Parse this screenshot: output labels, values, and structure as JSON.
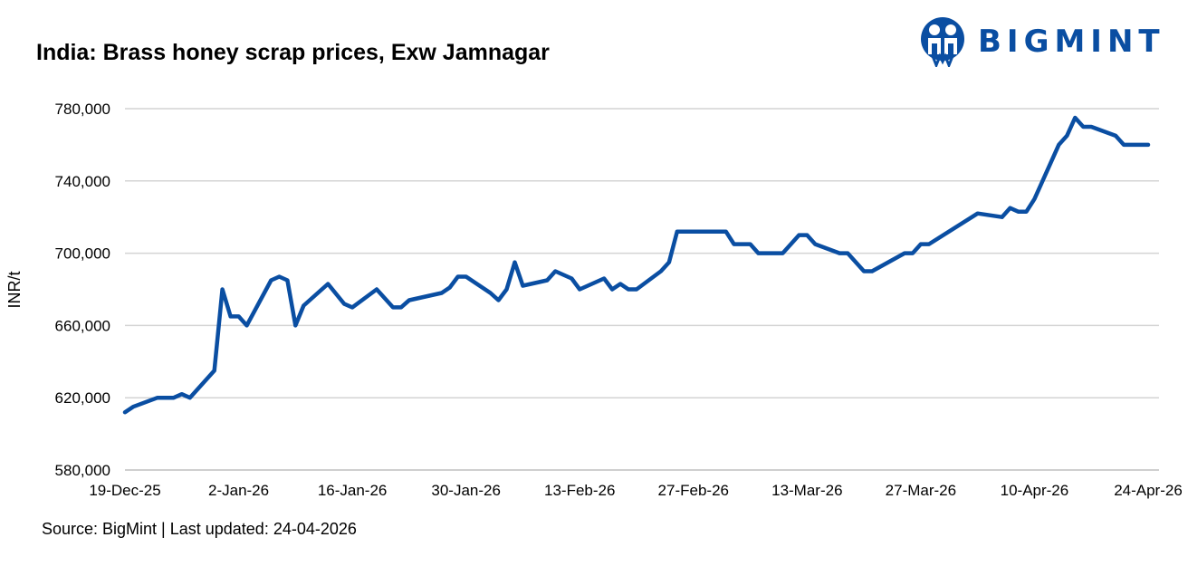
{
  "chart_data": {
    "type": "line",
    "title": "India: Brass honey scrap prices, Exw Jamnagar",
    "ylabel": "INR/t",
    "xlabel": "",
    "ylim": [
      580000,
      780000
    ],
    "yticks": [
      580000,
      620000,
      660000,
      700000,
      740000,
      780000
    ],
    "ytick_labels": [
      "580,000",
      "620,000",
      "660,000",
      "700,000",
      "740,000",
      "780,000"
    ],
    "xlim": [
      "2025-12-19",
      "2026-04-24"
    ],
    "xticks": [
      "2025-12-19",
      "2026-01-02",
      "2026-01-16",
      "2026-01-30",
      "2026-02-13",
      "2026-02-27",
      "2026-03-13",
      "2026-03-27",
      "2026-04-10",
      "2026-04-24"
    ],
    "xtick_labels": [
      "19-Dec-25",
      "2-Jan-26",
      "16-Jan-26",
      "30-Jan-26",
      "13-Feb-26",
      "27-Feb-26",
      "13-Mar-26",
      "27-Mar-26",
      "10-Apr-26",
      "24-Apr-26"
    ],
    "grid": "horizontal",
    "line_color": "#0a4ea2",
    "series": [
      {
        "x": [
          "2025-12-19",
          "2025-12-20",
          "2025-12-23",
          "2025-12-25",
          "2025-12-26",
          "2025-12-27",
          "2025-12-30",
          "2025-12-31",
          "2026-01-01",
          "2026-01-02",
          "2026-01-03",
          "2026-01-06",
          "2026-01-07",
          "2026-01-08",
          "2026-01-09",
          "2026-01-10",
          "2026-01-13",
          "2026-01-15",
          "2026-01-16",
          "2026-01-19",
          "2026-01-21",
          "2026-01-22",
          "2026-01-23",
          "2026-01-27",
          "2026-01-28",
          "2026-01-29",
          "2026-01-30",
          "2026-02-02",
          "2026-02-03",
          "2026-02-04",
          "2026-02-05",
          "2026-02-06",
          "2026-02-09",
          "2026-02-10",
          "2026-02-12",
          "2026-02-13",
          "2026-02-16",
          "2026-02-17",
          "2026-02-18",
          "2026-02-19",
          "2026-02-20",
          "2026-02-23",
          "2026-02-24",
          "2026-02-25",
          "2026-03-03",
          "2026-03-04",
          "2026-03-06",
          "2026-03-07",
          "2026-03-10",
          "2026-03-12",
          "2026-03-13",
          "2026-03-14",
          "2026-03-17",
          "2026-03-18",
          "2026-03-20",
          "2026-03-21",
          "2026-03-25",
          "2026-03-26",
          "2026-03-27",
          "2026-03-28",
          "2026-04-03",
          "2026-04-06",
          "2026-04-07",
          "2026-04-08",
          "2026-04-09",
          "2026-04-10",
          "2026-04-13",
          "2026-04-14",
          "2026-04-15",
          "2026-04-16",
          "2026-04-17",
          "2026-04-20",
          "2026-04-21",
          "2026-04-24"
        ],
        "values": [
          612000,
          615000,
          620000,
          620000,
          622000,
          620000,
          635000,
          680000,
          665000,
          665000,
          660000,
          685000,
          687000,
          685000,
          660000,
          671000,
          683000,
          672000,
          670000,
          680000,
          670000,
          670000,
          674000,
          678000,
          681000,
          687000,
          687000,
          678000,
          674000,
          680000,
          695000,
          682000,
          685000,
          690000,
          686000,
          680000,
          686000,
          680000,
          683000,
          680000,
          680000,
          690000,
          695000,
          712000,
          712000,
          705000,
          705000,
          700000,
          700000,
          710000,
          710000,
          705000,
          700000,
          700000,
          690000,
          690000,
          700000,
          700000,
          705000,
          705000,
          722000,
          720000,
          725000,
          723000,
          723000,
          730000,
          760000,
          765000,
          775000,
          770000,
          770000,
          765000,
          760000,
          760000
        ]
      }
    ]
  },
  "source": "Source: BigMint | Last updated: 24-04-2026",
  "logo": {
    "text": "BIGMINT",
    "color": "#0a4ea2"
  }
}
